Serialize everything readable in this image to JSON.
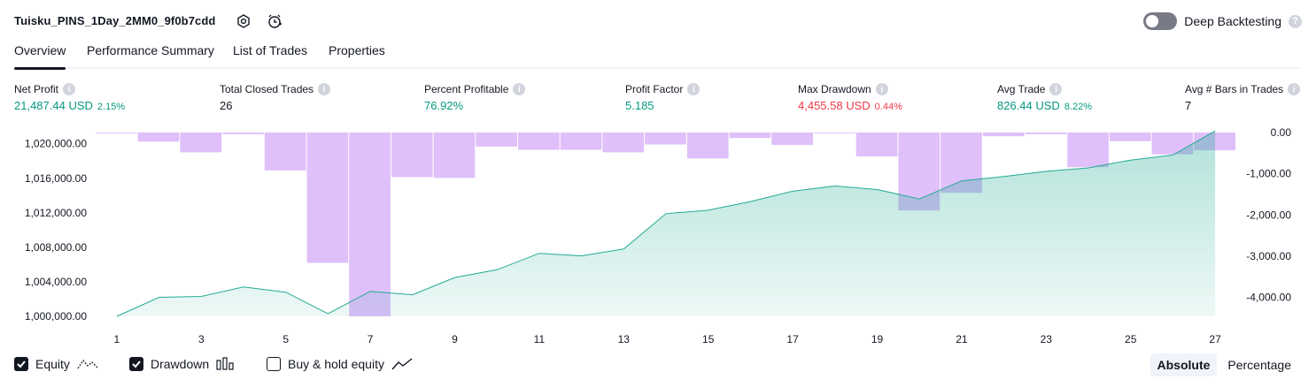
{
  "header": {
    "title": "Tuisku_PINS_1Day_2MM0_9f0b7cdd",
    "deep_backtesting_label": "Deep Backtesting"
  },
  "tabs": [
    {
      "label": "Overview"
    },
    {
      "label": "Performance Summary"
    },
    {
      "label": "List of Trades"
    },
    {
      "label": "Properties"
    }
  ],
  "metrics": {
    "net_profit": {
      "label": "Net Profit",
      "value": "21,487.44 USD",
      "pct": "2.15%"
    },
    "total_closed_trades": {
      "label": "Total Closed Trades",
      "value": "26"
    },
    "percent_profitable": {
      "label": "Percent Profitable",
      "value": "76.92%"
    },
    "profit_factor": {
      "label": "Profit Factor",
      "value": "5.185"
    },
    "max_drawdown": {
      "label": "Max Drawdown",
      "value": "4,455.58 USD",
      "pct": "0.44%"
    },
    "avg_trade": {
      "label": "Avg Trade",
      "value": "826.44 USD",
      "pct": "8.22%"
    },
    "avg_bars": {
      "label": "Avg # Bars in Trades",
      "value": "7"
    }
  },
  "chart_data": {
    "type": "area",
    "x": [
      1,
      2,
      3,
      4,
      5,
      6,
      7,
      8,
      9,
      10,
      11,
      12,
      13,
      14,
      15,
      16,
      17,
      18,
      19,
      20,
      21,
      22,
      23,
      24,
      25,
      26,
      27
    ],
    "series": [
      {
        "values": [
          1000000,
          1002200,
          1002300,
          1003400,
          1002800,
          1000300,
          1002900,
          1002500,
          1004500,
          1005400,
          1007300,
          1007000,
          1007800,
          1011900,
          1012300,
          1013300,
          1014500,
          1015100,
          1014700,
          1013600,
          1015700,
          1016200,
          1016800,
          1017200,
          1018100,
          1018700,
          1021487.44
        ],
        "color": "#22ab94"
      },
      {
        "values": [
          -20,
          -220,
          -480,
          -40,
          -920,
          -3160,
          -4455.58,
          -1080,
          -1100,
          -340,
          -420,
          -420,
          -480,
          -290,
          -630,
          -130,
          -300,
          -20,
          -580,
          -1890,
          -1460,
          -90,
          -40,
          -840,
          -210,
          -530,
          -430
        ],
        "color": "#c58df5"
      }
    ],
    "left_axis_ticks": [
      "1,020,000.00",
      "1,016,000.00",
      "1,012,000.00",
      "1,008,000.00",
      "1,004,000.00",
      "1,000,000.00"
    ],
    "left_axis_values": [
      1020000,
      1016000,
      1012000,
      1008000,
      1004000,
      1000000
    ],
    "right_axis_ticks": [
      "0.00",
      "-1,000.00",
      "-2,000.00",
      "-3,000.00",
      "-4,000.00"
    ],
    "right_axis_values": [
      0,
      -1000,
      -2000,
      -3000,
      -4000
    ],
    "x_ticks": [
      "1",
      "3",
      "5",
      "7",
      "9",
      "11",
      "13",
      "15",
      "17",
      "19",
      "21",
      "23",
      "25",
      "27"
    ],
    "ylim_left": [
      1000000,
      1021300
    ],
    "ylim_right": [
      -4455.58,
      0
    ]
  },
  "legend": {
    "equity_label": "Equity",
    "drawdown_label": "Drawdown",
    "buy_hold_label": "Buy & hold equity",
    "equity_checked": true,
    "drawdown_checked": true,
    "buy_hold_checked": false
  },
  "view_toggle": {
    "absolute_label": "Absolute",
    "percentage_label": "Percentage",
    "selected": "Absolute"
  }
}
